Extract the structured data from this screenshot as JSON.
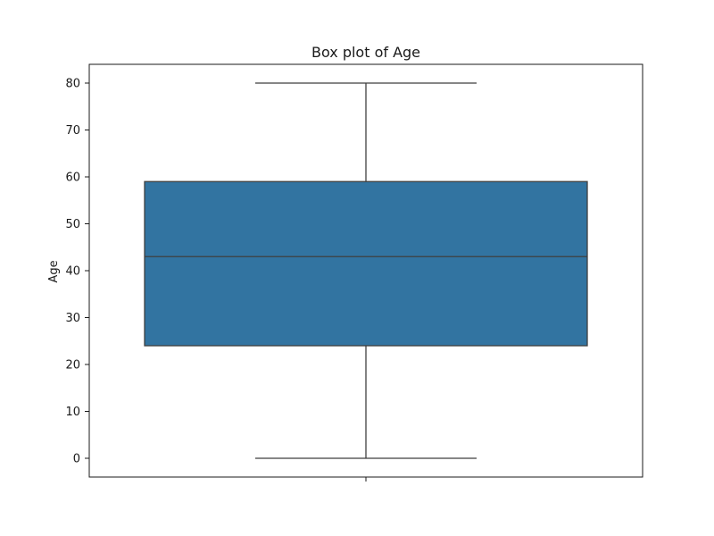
{
  "chart_data": {
    "type": "box",
    "title": "Box plot of Age",
    "xlabel": "",
    "ylabel": "Age",
    "ylim": [
      -4,
      84
    ],
    "yticks": [
      0,
      10,
      20,
      30,
      40,
      50,
      60,
      70,
      80
    ],
    "grid": false,
    "series": [
      {
        "whisker_low": 0,
        "q1": 24,
        "median": 43,
        "q3": 59,
        "whisker_high": 80,
        "color": "#3274a1"
      }
    ]
  }
}
